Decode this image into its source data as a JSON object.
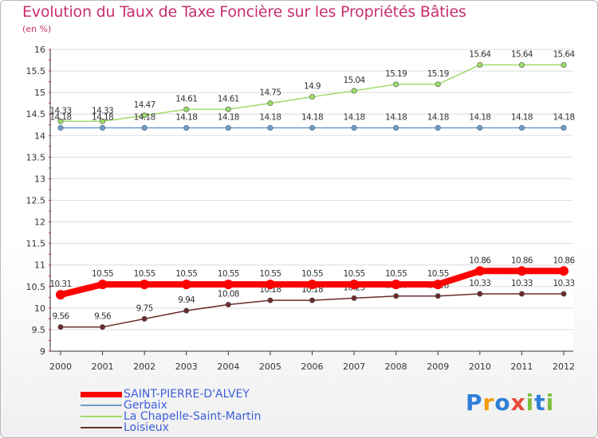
{
  "header": {
    "title": "Evolution du Taux de Taxe Foncière sur les Propriétés Bâties",
    "unit": "(en %)"
  },
  "logo": {
    "text": "Proxiti",
    "colors": [
      "#2f7fd6",
      "#f39c12",
      "#2f7fd6",
      "#e74c3c",
      "#7fbf3f",
      "#2f7fd6",
      "#7fbf3f"
    ]
  },
  "chart_data": {
    "type": "line",
    "title": "Evolution du Taux de Taxe Foncière sur les Propriétés Bâties",
    "ylabel": "(en %)",
    "xlabel": "",
    "x": [
      "2000",
      "2001",
      "2002",
      "2003",
      "2004",
      "2005",
      "2006",
      "2007",
      "2008",
      "2009",
      "2010",
      "2011",
      "2012"
    ],
    "yticks": [
      "9",
      "9.5",
      "10",
      "10.5",
      "11",
      "11.5",
      "12",
      "12.5",
      "13",
      "13.5",
      "14",
      "14.5",
      "15",
      "15.5",
      "16"
    ],
    "ylim": [
      9,
      16
    ],
    "grid": "horizontal",
    "legend_position": "bottom-left",
    "series": [
      {
        "name": "Loisieux",
        "color": "#6b2b2b",
        "labels": [
          "9.56",
          "9.56",
          "9.75",
          "9.94",
          "10.08",
          "10.18",
          "10.18",
          "10.23",
          "10.28",
          "10.28",
          "10.33",
          "10.33",
          "10.33"
        ],
        "values": [
          9.56,
          9.56,
          9.75,
          9.94,
          10.08,
          10.18,
          10.18,
          10.23,
          10.28,
          10.28,
          10.33,
          10.33,
          10.33
        ]
      },
      {
        "name": "La Chapelle-Saint-Martin",
        "color": "#9ddc6a",
        "labels": [
          "14.33",
          "14.33",
          "14.47",
          "14.61",
          "14.61",
          "14.75",
          "14.9",
          "15.04",
          "15.19",
          "15.19",
          "15.64",
          "15.64",
          "15.64"
        ],
        "values": [
          14.33,
          14.33,
          14.47,
          14.61,
          14.61,
          14.75,
          14.9,
          15.04,
          15.19,
          15.19,
          15.64,
          15.64,
          15.64
        ]
      },
      {
        "name": "Gerbaix",
        "color": "#6a9fcf",
        "labels": [
          "14.18",
          "14.18",
          "14.18",
          "14.18",
          "14.18",
          "14.18",
          "14.18",
          "14.18",
          "14.18",
          "14.18",
          "14.18",
          "14.18",
          "14.18"
        ],
        "values": [
          14.18,
          14.18,
          14.18,
          14.18,
          14.18,
          14.18,
          14.18,
          14.18,
          14.18,
          14.18,
          14.18,
          14.18,
          14.18
        ]
      },
      {
        "name": "SAINT-PIERRE-D'ALVEY",
        "color": "#ff0000",
        "labels": [
          "10.31",
          "10.55",
          "10.55",
          "10.55",
          "10.55",
          "10.55",
          "10.55",
          "10.55",
          "10.55",
          "10.55",
          "10.86",
          "10.86",
          "10.86"
        ],
        "values": [
          10.31,
          10.55,
          10.55,
          10.55,
          10.55,
          10.55,
          10.55,
          10.55,
          10.55,
          10.55,
          10.86,
          10.86,
          10.86
        ]
      }
    ],
    "legend": [
      "SAINT-PIERRE-D'ALVEY",
      "Gerbaix",
      "La Chapelle-Saint-Martin",
      "Loisieux"
    ]
  }
}
